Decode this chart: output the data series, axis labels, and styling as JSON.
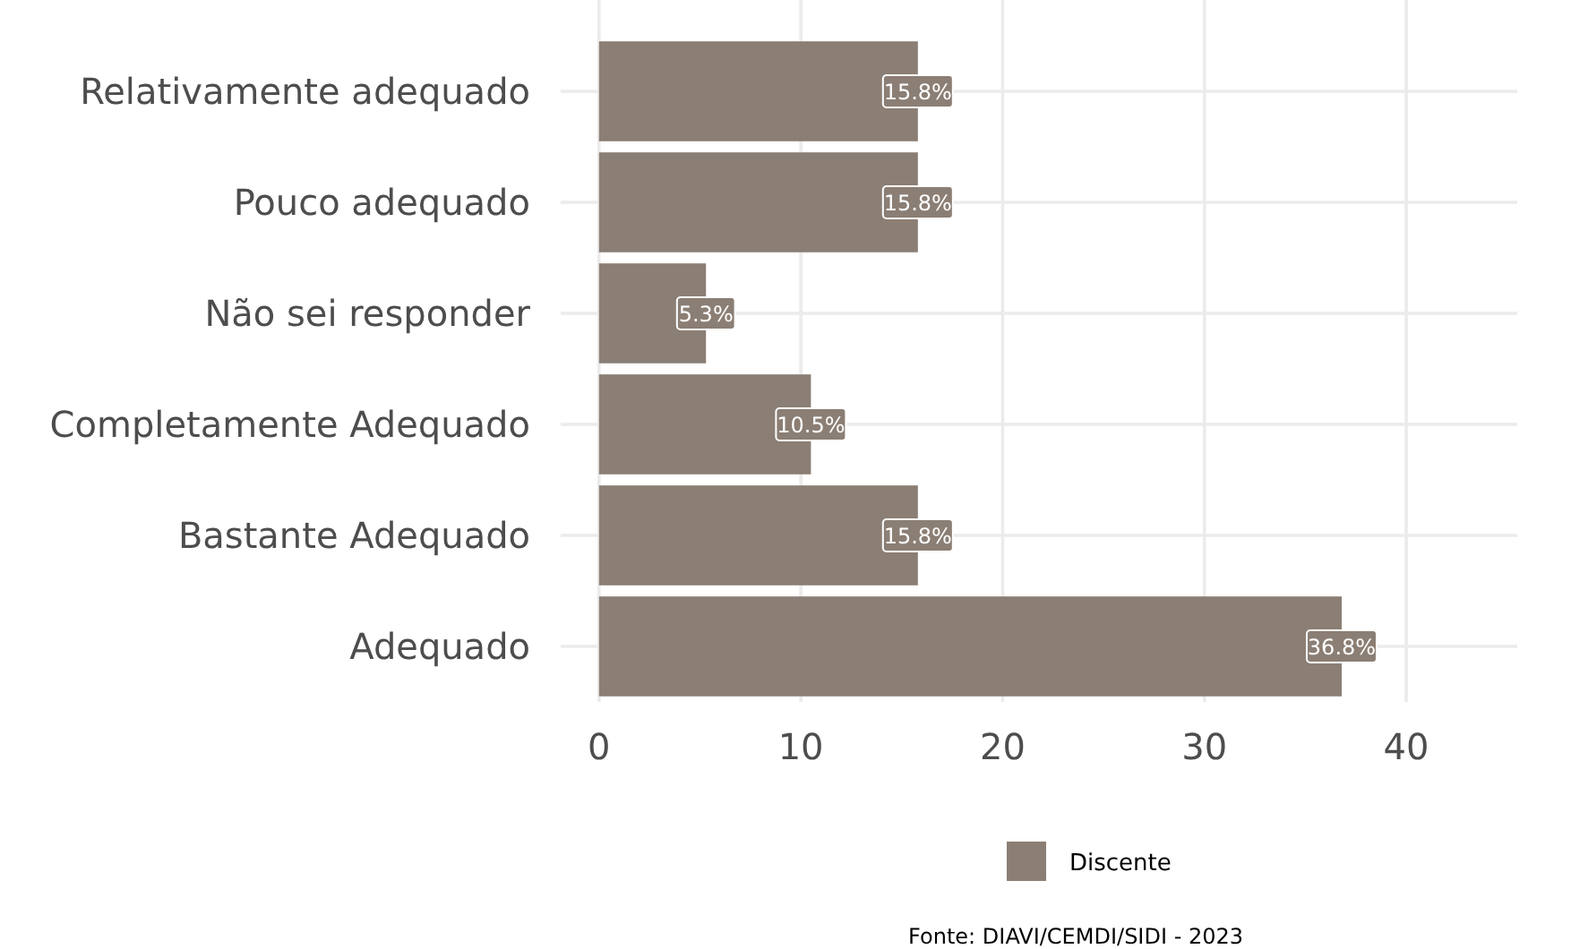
{
  "chart_data": {
    "type": "bar",
    "orientation": "horizontal",
    "categories": [
      "Relativamente adequado",
      "Pouco adequado",
      "Não sei responder",
      "Completamente Adequado",
      "Bastante Adequado",
      "Adequado"
    ],
    "series": [
      {
        "name": "Discente",
        "color": "#8b7e74",
        "values": [
          15.8,
          15.8,
          5.3,
          10.5,
          15.8,
          36.8
        ],
        "value_labels": [
          "15.8%",
          "15.8%",
          "5.3%",
          "10.5%",
          "15.8%",
          "36.8%"
        ]
      }
    ],
    "xlim": [
      -1.9,
      45.5
    ],
    "xticks": [
      0,
      10,
      20,
      30,
      40
    ],
    "grid": true,
    "legend": "bottom",
    "annotations": [
      "Fonte: DIAVI/CEMDI/SIDI - 2023"
    ]
  }
}
